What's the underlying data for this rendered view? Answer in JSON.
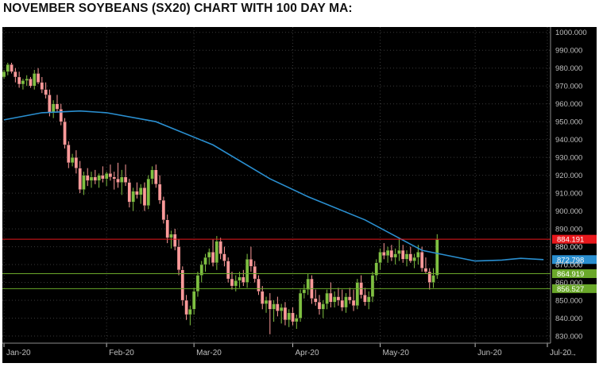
{
  "title": "NOVEMBER SOYBEANS (SX20) CHART WITH 100 DAY MA:",
  "chart_data": {
    "type": "candlestick",
    "title": "NOVEMBER SOYBEANS (SX20) CHART WITH 100 DAY MA:",
    "xlabel": "",
    "ylabel": "",
    "ylim": [
      826,
      1003
    ],
    "y_ticks": [
      830,
      840,
      850,
      860,
      870,
      880,
      890,
      900,
      910,
      920,
      930,
      940,
      950,
      960,
      970,
      980,
      990,
      1000
    ],
    "y_tick_labels": [
      "830.000",
      "840.000",
      "850.000",
      "860.000",
      "870.000",
      "880.000",
      "890.000",
      "900.000",
      "910.000",
      "920.000",
      "930.000",
      "940.000",
      "950.000",
      "960.000",
      "970.000",
      "980.000",
      "990.000",
      "1000.000"
    ],
    "x_tick_labels": [
      "Jan-20",
      "Feb-20",
      "Mar-20",
      "Apr-20",
      "May-20",
      "Jun-20",
      "Jul-20"
    ],
    "grid": true,
    "colors": {
      "up": "#7fc041",
      "down": "#ff9a9a",
      "ma": "#2a8fd0",
      "red_level": "#e8181c",
      "green_level": "#6aa82a",
      "grid": "#3a3a3a",
      "axis_text": "#bfbfbf",
      "background": "#000000"
    },
    "ma_series": {
      "x": [
        0,
        10,
        20,
        27,
        40,
        55,
        70,
        80,
        95,
        110,
        124,
        131,
        136,
        142
      ],
      "y": [
        951,
        955,
        956,
        955,
        950,
        937,
        918,
        908,
        895,
        878,
        872,
        872.5,
        873.5,
        872.798
      ]
    },
    "candles": [
      [
        0,
        975,
        979,
        974,
        978
      ],
      [
        1,
        978,
        983,
        976,
        982
      ],
      [
        2,
        982,
        983,
        977,
        978
      ],
      [
        3,
        978,
        980,
        972,
        975
      ],
      [
        4,
        975,
        978,
        969,
        971
      ],
      [
        5,
        971,
        974,
        968,
        973
      ],
      [
        6,
        973,
        976,
        970,
        974
      ],
      [
        7,
        974,
        975,
        969,
        970
      ],
      [
        8,
        970,
        979,
        968,
        977
      ],
      [
        9,
        977,
        980,
        971,
        972
      ],
      [
        10,
        972,
        975,
        966,
        968
      ],
      [
        11,
        968,
        972,
        963,
        965
      ],
      [
        12,
        965,
        968,
        953,
        955
      ],
      [
        13,
        955,
        962,
        952,
        960
      ],
      [
        14,
        960,
        965,
        955,
        957
      ],
      [
        15,
        957,
        960,
        948,
        950
      ],
      [
        16,
        950,
        952,
        935,
        937
      ],
      [
        17,
        937,
        939,
        924,
        927
      ],
      [
        18,
        927,
        932,
        925,
        930
      ],
      [
        19,
        930,
        934,
        921,
        924
      ],
      [
        20,
        924,
        928,
        910,
        912
      ],
      [
        21,
        912,
        922,
        909,
        920
      ],
      [
        22,
        920,
        924,
        914,
        917
      ],
      [
        23,
        917,
        922,
        913,
        919
      ],
      [
        24,
        919,
        923,
        915,
        917
      ],
      [
        25,
        917,
        921,
        913,
        920
      ],
      [
        26,
        920,
        925,
        916,
        918
      ],
      [
        27,
        918,
        922,
        914,
        921
      ],
      [
        28,
        921,
        926,
        917,
        919
      ],
      [
        29,
        919,
        922,
        912,
        918
      ],
      [
        30,
        918,
        927,
        913,
        916
      ],
      [
        31,
        916,
        923,
        909,
        919
      ],
      [
        32,
        919,
        926,
        914,
        916
      ],
      [
        33,
        916,
        918,
        902,
        905
      ],
      [
        34,
        905,
        913,
        900,
        911
      ],
      [
        35,
        911,
        916,
        907,
        909
      ],
      [
        36,
        909,
        915,
        904,
        913
      ],
      [
        37,
        913,
        916,
        900,
        903
      ],
      [
        38,
        903,
        920,
        901,
        918
      ],
      [
        39,
        918,
        925,
        915,
        923
      ],
      [
        40,
        923,
        926,
        913,
        915
      ],
      [
        41,
        915,
        920,
        904,
        906
      ],
      [
        42,
        906,
        908,
        893,
        895
      ],
      [
        43,
        895,
        898,
        882,
        885
      ],
      [
        44,
        885,
        889,
        879,
        887
      ],
      [
        45,
        887,
        890,
        878,
        880
      ],
      [
        46,
        880,
        884,
        864,
        867
      ],
      [
        47,
        867,
        869,
        847,
        850
      ],
      [
        48,
        850,
        853,
        839,
        842
      ],
      [
        49,
        842,
        847,
        836,
        845
      ],
      [
        50,
        845,
        857,
        842,
        855
      ],
      [
        51,
        855,
        866,
        852,
        864
      ],
      [
        52,
        864,
        872,
        860,
        870
      ],
      [
        53,
        870,
        876,
        866,
        874
      ],
      [
        54,
        874,
        879,
        870,
        877
      ],
      [
        55,
        877,
        884,
        869,
        871
      ],
      [
        56,
        871,
        886,
        867,
        883
      ],
      [
        57,
        883,
        885,
        873,
        876
      ],
      [
        58,
        876,
        880,
        869,
        872
      ],
      [
        59,
        872,
        874,
        860,
        862
      ],
      [
        60,
        862,
        866,
        856,
        858
      ],
      [
        61,
        858,
        864,
        855,
        861
      ],
      [
        62,
        861,
        866,
        857,
        863
      ],
      [
        63,
        863,
        867,
        858,
        860
      ],
      [
        64,
        860,
        876,
        857,
        873
      ],
      [
        65,
        873,
        880,
        866,
        869
      ],
      [
        66,
        869,
        872,
        860,
        862
      ],
      [
        67,
        862,
        864,
        853,
        855
      ],
      [
        68,
        855,
        858,
        845,
        848
      ],
      [
        69,
        848,
        852,
        843,
        850
      ],
      [
        70,
        850,
        854,
        831,
        845
      ],
      [
        71,
        845,
        850,
        838,
        848
      ],
      [
        72,
        848,
        852,
        841,
        844
      ],
      [
        73,
        844,
        848,
        837,
        846
      ],
      [
        74,
        846,
        849,
        836,
        839
      ],
      [
        75,
        839,
        845,
        835,
        843
      ],
      [
        76,
        843,
        846,
        836,
        838
      ],
      [
        77,
        838,
        842,
        834,
        840
      ],
      [
        78,
        840,
        856,
        838,
        854
      ],
      [
        79,
        854,
        859,
        851,
        856
      ],
      [
        80,
        856,
        865,
        853,
        862
      ],
      [
        81,
        862,
        864,
        848,
        851
      ],
      [
        82,
        851,
        856,
        847,
        849
      ],
      [
        83,
        849,
        853,
        842,
        845
      ],
      [
        84,
        845,
        850,
        840,
        848
      ],
      [
        85,
        848,
        856,
        845,
        854
      ],
      [
        86,
        854,
        860,
        846,
        849
      ],
      [
        87,
        849,
        855,
        846,
        852
      ],
      [
        88,
        852,
        857,
        847,
        850
      ],
      [
        89,
        850,
        856,
        844,
        846
      ],
      [
        90,
        846,
        854,
        843,
        852
      ],
      [
        91,
        852,
        857,
        848,
        850
      ],
      [
        92,
        850,
        856,
        844,
        847
      ],
      [
        93,
        847,
        862,
        845,
        860
      ],
      [
        94,
        860,
        864,
        851,
        853
      ],
      [
        95,
        853,
        857,
        847,
        849
      ],
      [
        96,
        849,
        855,
        845,
        852
      ],
      [
        97,
        852,
        866,
        849,
        864
      ],
      [
        98,
        864,
        873,
        861,
        871
      ],
      [
        99,
        871,
        879,
        867,
        877
      ],
      [
        100,
        877,
        882,
        873,
        875
      ],
      [
        101,
        875,
        880,
        871,
        878
      ],
      [
        102,
        878,
        881,
        872,
        874
      ],
      [
        103,
        874,
        879,
        870,
        876
      ],
      [
        104,
        876,
        885,
        872,
        878
      ],
      [
        105,
        878,
        881,
        871,
        873
      ],
      [
        106,
        873,
        878,
        869,
        876
      ],
      [
        107,
        876,
        880,
        871,
        872
      ],
      [
        108,
        872,
        876,
        868,
        874
      ],
      [
        109,
        874,
        881,
        870,
        877
      ],
      [
        110,
        877,
        880,
        866,
        868
      ],
      [
        111,
        868,
        874,
        865,
        866
      ],
      [
        112,
        866,
        868,
        856,
        860
      ],
      [
        113,
        860,
        868,
        857,
        864
      ],
      [
        114,
        864,
        887,
        862,
        884
      ]
    ],
    "candle_x_range": [
      0,
      143
    ],
    "x_tick_positions": [
      0,
      27,
      50,
      76,
      99,
      124,
      143
    ],
    "levels": [
      {
        "value": 884.191,
        "label": "884.191",
        "kind": "red"
      },
      {
        "value": 872.798,
        "label": "872.798",
        "kind": "ma"
      },
      {
        "value": 864.919,
        "label": "864.919",
        "kind": "green"
      },
      {
        "value": 856.527,
        "label": "856.527",
        "kind": "green"
      }
    ],
    "partial_tick": "880.000",
    "partial_tick_2": "870.000"
  }
}
